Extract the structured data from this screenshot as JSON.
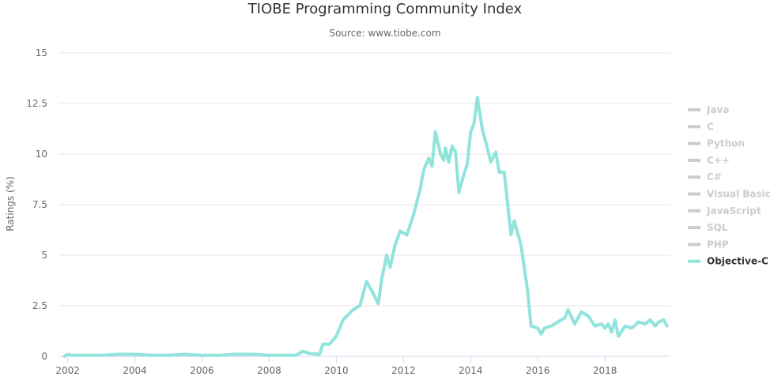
{
  "chart_data": {
    "type": "line",
    "title": "TIOBE Programming Community Index",
    "subtitle": "Source: www.tiobe.com",
    "xlabel": "",
    "ylabel": "Ratings (%)",
    "xlim": [
      2001.75,
      2019.95
    ],
    "ylim": [
      0,
      15
    ],
    "y_ticks": [
      "0",
      "2.5",
      "5",
      "7.5",
      "10",
      "12.5",
      "15"
    ],
    "x_ticks": [
      "2002",
      "2004",
      "2006",
      "2008",
      "2010",
      "2012",
      "2014",
      "2016",
      "2018"
    ],
    "grid": "horizontal",
    "legend_position": "right",
    "legend": [
      {
        "name": "Java",
        "active": false
      },
      {
        "name": "C",
        "active": false
      },
      {
        "name": "Python",
        "active": false
      },
      {
        "name": "C++",
        "active": false
      },
      {
        "name": "C#",
        "active": false
      },
      {
        "name": "Visual Basic",
        "active": false
      },
      {
        "name": "JavaScript",
        "active": false
      },
      {
        "name": "SQL",
        "active": false
      },
      {
        "name": "PHP",
        "active": false
      },
      {
        "name": "Objective-C",
        "active": true
      }
    ],
    "colors": {
      "series": "#90e4dc",
      "inactive_legend": "#cccccc",
      "active_legend_text": "#333333",
      "grid": "#e6e6e6",
      "axis": "#ccd6eb",
      "title": "#333333",
      "subtitle": "#666666"
    },
    "series": [
      {
        "name": "Objective-C",
        "x": [
          2001.9,
          2002.0,
          2002.1,
          2002.5,
          2003.0,
          2003.5,
          2003.8,
          2004.0,
          2004.5,
          2005.0,
          2005.5,
          2006.0,
          2006.5,
          2007.0,
          2007.5,
          2008.0,
          2008.5,
          2008.8,
          2009.0,
          2009.2,
          2009.5,
          2009.6,
          2009.8,
          2010.0,
          2010.2,
          2010.5,
          2010.7,
          2010.9,
          2011.1,
          2011.25,
          2011.35,
          2011.5,
          2011.6,
          2011.75,
          2011.9,
          2012.1,
          2012.3,
          2012.5,
          2012.6,
          2012.75,
          2012.85,
          2012.95,
          2013.1,
          2013.2,
          2013.25,
          2013.35,
          2013.45,
          2013.55,
          2013.65,
          2013.8,
          2013.9,
          2014.0,
          2014.1,
          2014.2,
          2014.35,
          2014.45,
          2014.6,
          2014.75,
          2014.85,
          2015.0,
          2015.2,
          2015.3,
          2015.5,
          2015.7,
          2015.8,
          2016.0,
          2016.1,
          2016.2,
          2016.4,
          2016.6,
          2016.8,
          2016.9,
          2017.1,
          2017.3,
          2017.5,
          2017.7,
          2017.9,
          2018.0,
          2018.1,
          2018.2,
          2018.3,
          2018.4,
          2018.6,
          2018.8,
          2019.0,
          2019.2,
          2019.35,
          2019.5,
          2019.6,
          2019.75,
          2019.85
        ],
        "values": [
          0.0,
          0.1,
          0.05,
          0.05,
          0.05,
          0.1,
          0.1,
          0.1,
          0.05,
          0.05,
          0.1,
          0.05,
          0.05,
          0.1,
          0.1,
          0.05,
          0.05,
          0.05,
          0.25,
          0.15,
          0.1,
          0.6,
          0.6,
          1.0,
          1.8,
          2.3,
          2.5,
          3.7,
          3.1,
          2.6,
          3.8,
          5.0,
          4.4,
          5.5,
          6.2,
          6.0,
          7.0,
          8.3,
          9.2,
          9.8,
          9.4,
          11.1,
          10.0,
          9.7,
          10.3,
          9.6,
          10.4,
          10.1,
          8.1,
          9.0,
          9.5,
          11.1,
          11.5,
          12.8,
          11.2,
          10.6,
          9.6,
          10.1,
          9.1,
          9.1,
          6.0,
          6.7,
          5.5,
          3.2,
          1.5,
          1.4,
          1.1,
          1.4,
          1.5,
          1.7,
          1.9,
          2.3,
          1.6,
          2.2,
          2.0,
          1.5,
          1.6,
          1.4,
          1.6,
          1.2,
          1.8,
          1.0,
          1.5,
          1.4,
          1.7,
          1.6,
          1.8,
          1.5,
          1.7,
          1.8,
          1.5
        ]
      }
    ]
  }
}
